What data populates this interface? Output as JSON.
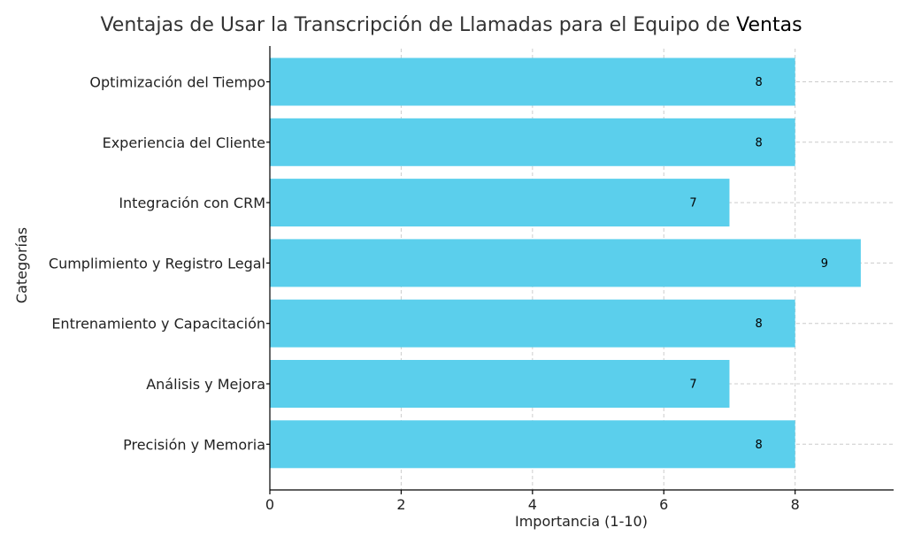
{
  "chart_data": {
    "type": "bar",
    "orientation": "horizontal",
    "title": "Ventajas de Usar la Transcripción de Llamadas para el Equipo de Ventas",
    "xlabel": "Importancia (1-10)",
    "ylabel": "Categorías",
    "categories": [
      "Optimización del Tiempo",
      "Experiencia del Cliente",
      "Integración con CRM",
      "Cumplimiento y Registro Legal",
      "Entrenamiento y Capacitación",
      "Análisis y Mejora",
      "Precisión y Memoria"
    ],
    "values": [
      8,
      8,
      7,
      9,
      8,
      7,
      8
    ],
    "xlim": [
      0,
      9.5
    ],
    "xticks": [
      0,
      2,
      4,
      6,
      8
    ],
    "grid": true,
    "bar_color": "#5bcfec"
  }
}
